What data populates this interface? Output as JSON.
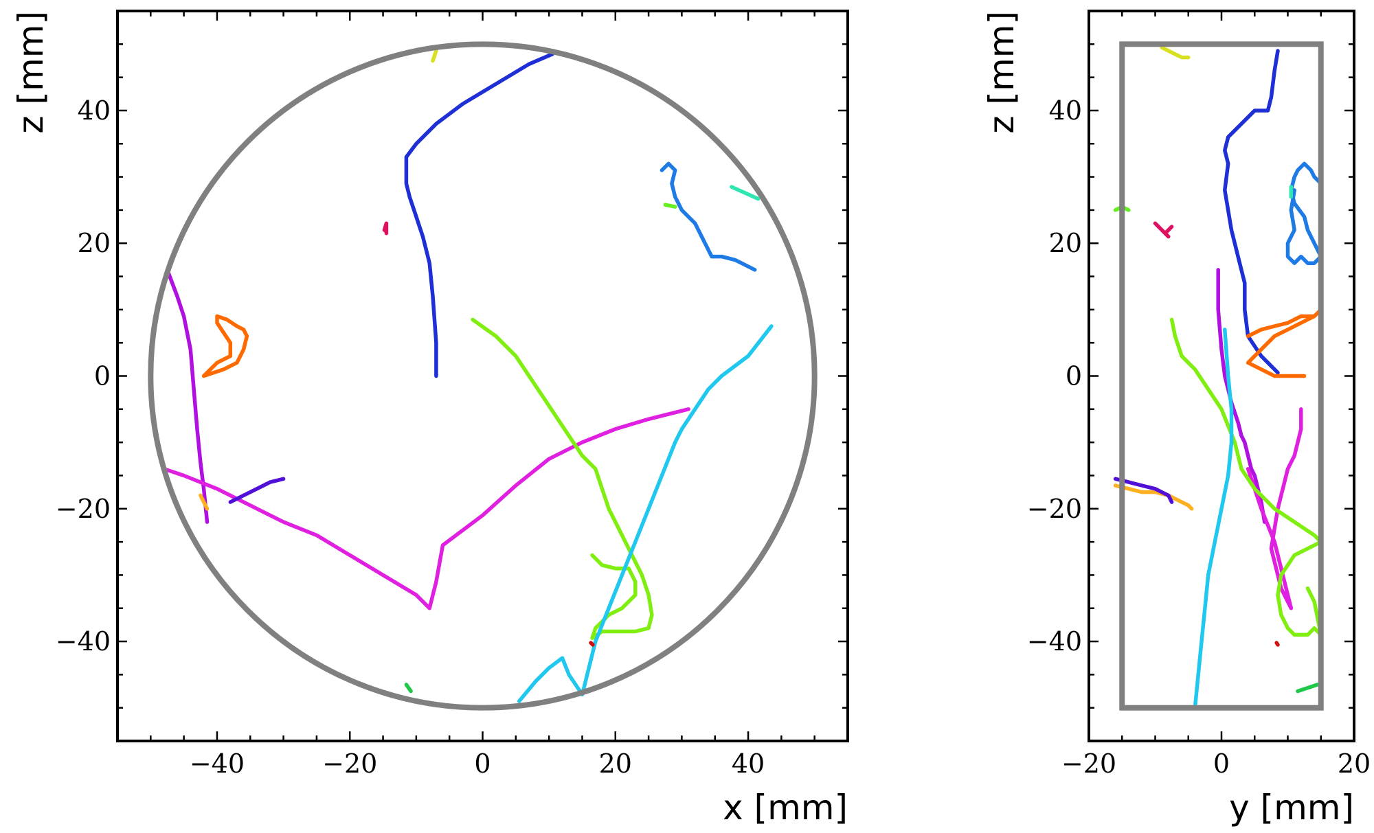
{
  "chart_data": [
    {
      "type": "line",
      "xlabel": "x [mm]",
      "ylabel": "z [mm]",
      "xlim": [
        -55,
        55
      ],
      "ylim": [
        -55,
        55
      ],
      "xticks": [
        -40,
        -20,
        0,
        20,
        40
      ],
      "yticks": [
        -40,
        -20,
        0,
        20,
        40
      ],
      "xtick_labels": [
        "−40",
        "−20",
        "0",
        "20",
        "40"
      ],
      "ytick_labels": [
        "−40",
        "−20",
        "0",
        "20",
        "40"
      ],
      "minor_step": 5,
      "grid": false,
      "legend": "none",
      "detector": {
        "shape": "circle",
        "cx": 0,
        "cy": 0,
        "r": 50,
        "color": "#808080"
      },
      "series": [
        {
          "color": "#1e2fd6",
          "x": [
            -7,
            -7,
            -7.5,
            -8,
            -8.5,
            -9,
            -10,
            -11,
            -11.5,
            -11.5,
            -11.5,
            -10,
            -7,
            -3,
            2,
            7,
            10.5
          ],
          "y": [
            0,
            5,
            12,
            17,
            19,
            21,
            24,
            27,
            29,
            32,
            33,
            35,
            38,
            41,
            44,
            47,
            48.5
          ]
        },
        {
          "color": "#1e7be6",
          "x": [
            27,
            28,
            29,
            28.5,
            29,
            30,
            32,
            33,
            34,
            34.5,
            36,
            38,
            39,
            41
          ],
          "y": [
            31,
            32,
            31,
            29,
            27,
            25,
            23,
            21,
            19,
            18,
            18,
            17.5,
            17,
            16
          ]
        },
        {
          "color": "#2fe6b0",
          "x": [
            37.5,
            41.5
          ],
          "y": [
            28.5,
            26.7
          ]
        },
        {
          "color": "#66ee22",
          "x": [
            27.5,
            29
          ],
          "y": [
            25.8,
            25.5
          ]
        },
        {
          "color": "#e01060",
          "x": [
            -14.5,
            -14.5,
            -14.5,
            -14.8,
            -14.5
          ],
          "y": [
            21.5,
            22.5,
            23,
            22,
            21.8
          ]
        },
        {
          "color": "#ff6a00",
          "x": [
            -42,
            -42,
            -39,
            -37,
            -36,
            -35.5,
            -36,
            -37,
            -38.5,
            -40,
            -40,
            -39,
            -38,
            -38,
            -40,
            -42
          ],
          "y": [
            0,
            0,
            1,
            2,
            4,
            6,
            7,
            7.5,
            8.5,
            9,
            8,
            6.5,
            5,
            3,
            2,
            0
          ]
        },
        {
          "color": "#b010e0",
          "x": [
            -47.5,
            -46,
            -45,
            -44,
            -43.5,
            -43,
            -42.5,
            -42,
            -41.5
          ],
          "y": [
            16,
            12,
            9,
            4,
            -2,
            -8,
            -13,
            -17,
            -22
          ]
        },
        {
          "color": "#ffb020",
          "x": [
            -42.5,
            -41.5
          ],
          "y": [
            -18,
            -20
          ]
        },
        {
          "color": "#e020e0",
          "x": [
            -48,
            -45,
            -40,
            -35,
            -30,
            -25,
            -20,
            -15,
            -10,
            -8,
            -7,
            -6,
            0,
            5,
            10,
            15,
            20,
            25,
            31
          ],
          "y": [
            -14,
            -15,
            -17,
            -19.5,
            -22,
            -24,
            -27,
            -30,
            -33,
            -35,
            -31,
            -25.5,
            -21,
            -16.5,
            -12.5,
            -10,
            -8,
            -6.5,
            -5
          ]
        },
        {
          "color": "#5010d8",
          "x": [
            -38,
            -35,
            -32,
            -30
          ],
          "y": [
            -19,
            -17.5,
            -16,
            -15.5
          ]
        },
        {
          "color": "#80ee10",
          "x": [
            -1.5,
            2,
            5,
            7,
            9,
            11,
            13,
            15,
            17,
            18,
            19,
            20,
            21,
            22,
            23,
            24,
            25,
            25.5,
            25,
            23,
            20,
            18,
            16.5,
            17,
            19,
            21,
            22,
            23,
            23,
            22,
            20,
            18,
            16.5
          ],
          "y": [
            8.5,
            6,
            3,
            0,
            -3,
            -6,
            -9,
            -12,
            -14,
            -17,
            -20,
            -22,
            -24,
            -26,
            -28,
            -30,
            -33,
            -36,
            -38,
            -38.5,
            -38.5,
            -38.5,
            -39.5,
            -38,
            -36,
            -35,
            -34,
            -33,
            -31,
            -29,
            -29,
            -28.5,
            -27
          ]
        },
        {
          "color": "#20c8f0",
          "x": [
            5.5,
            8,
            10,
            12,
            13,
            14,
            15,
            17,
            19,
            21,
            23,
            25,
            27,
            29,
            30,
            32,
            34,
            36,
            40,
            43.5
          ],
          "y": [
            -49,
            -46,
            -44,
            -42.5,
            -45,
            -46.5,
            -48,
            -40,
            -35,
            -30,
            -25,
            -20,
            -15,
            -10,
            -8,
            -5,
            -2,
            0,
            3,
            7.5
          ]
        },
        {
          "color": "#d8e020",
          "x": [
            -7.5,
            -7
          ],
          "y": [
            47.5,
            49
          ]
        },
        {
          "color": "#20c84a",
          "x": [
            -11.5,
            -10.8
          ],
          "y": [
            -46.5,
            -47.5
          ]
        },
        {
          "color": "#d01010",
          "x": [
            16.3,
            16.6
          ],
          "y": [
            -40.2,
            -40.5
          ]
        }
      ]
    },
    {
      "type": "line",
      "xlabel": "y [mm]",
      "ylabel": "z [mm]",
      "xlim": [
        -20,
        20
      ],
      "ylim": [
        -55,
        55
      ],
      "xticks": [
        -20,
        0,
        20
      ],
      "yticks": [
        -40,
        -20,
        0,
        20,
        40
      ],
      "xtick_labels": [
        "−20",
        "0",
        "20"
      ],
      "ytick_labels": [
        "−40",
        "−20",
        "0",
        "20",
        "40"
      ],
      "minor_step": 5,
      "grid": false,
      "legend": "none",
      "detector": {
        "shape": "rect",
        "x": [
          -15,
          15
        ],
        "y": [
          -50,
          50
        ],
        "color": "#808080"
      },
      "series": [
        {
          "color": "#1e2fd6",
          "x": [
            8.5,
            6,
            4,
            3.5,
            3.5,
            2.5,
            1.5,
            0.5,
            1,
            0.5,
            1,
            3,
            5,
            7,
            7.5,
            8,
            8.5
          ],
          "y": [
            0.5,
            3,
            6,
            10,
            14,
            18,
            22,
            28,
            32,
            34,
            36,
            38,
            40,
            40,
            42,
            46,
            49
          ]
        },
        {
          "color": "#1e7be6",
          "x": [
            11,
            10.5,
            11,
            10,
            10,
            11,
            12,
            13,
            14,
            15,
            14,
            13,
            12.5,
            11,
            10.5,
            11,
            11.5,
            12.5,
            13.5,
            14,
            15
          ],
          "y": [
            28,
            25,
            22,
            20,
            18,
            17,
            18,
            17,
            17,
            18,
            20,
            22,
            24,
            26,
            28,
            30,
            31,
            32,
            31,
            30,
            29
          ]
        },
        {
          "color": "#2fe6b0",
          "x": [
            10.5,
            10.5
          ],
          "y": [
            27,
            28.5
          ]
        },
        {
          "color": "#66ee22",
          "x": [
            -16,
            -15,
            -14
          ],
          "y": [
            25,
            25.5,
            25
          ]
        },
        {
          "color": "#e01060",
          "x": [
            -10,
            -9,
            -8,
            -8.5,
            -8,
            -7.5
          ],
          "y": [
            23,
            22,
            21,
            21.5,
            22,
            22.5
          ]
        },
        {
          "color": "#ff6a00",
          "x": [
            4,
            6,
            8,
            10,
            12,
            14,
            15,
            14,
            12,
            10,
            8,
            6,
            4,
            6,
            8,
            10,
            12,
            12.5
          ],
          "y": [
            6,
            7,
            7.5,
            8,
            9,
            9,
            10,
            9,
            8,
            7,
            6,
            4,
            2,
            1,
            0,
            0,
            0,
            0
          ]
        },
        {
          "color": "#b010e0",
          "x": [
            -0.5,
            -0.5,
            0,
            0.5,
            1.5,
            2.5,
            3,
            3.5,
            4,
            4.5,
            5,
            5.5,
            6,
            6.5
          ],
          "y": [
            16,
            10,
            4,
            0,
            -4,
            -7,
            -9,
            -10,
            -12,
            -14,
            -15,
            -17,
            -19,
            -22
          ]
        },
        {
          "color": "#ffb020",
          "x": [
            -16,
            -14,
            -12,
            -10,
            -8,
            -6,
            -5,
            -4.5
          ],
          "y": [
            -16.5,
            -17,
            -17.5,
            -17.5,
            -18,
            -19,
            -19.5,
            -20
          ]
        },
        {
          "color": "#e020e0",
          "x": [
            12,
            12,
            11.5,
            11,
            10,
            9.5,
            9,
            8.5,
            8,
            7.5,
            8,
            8.5,
            9,
            10,
            10.5,
            10,
            8,
            6,
            5,
            4
          ],
          "y": [
            -5,
            -8,
            -10,
            -12,
            -14,
            -16,
            -18,
            -20,
            -23,
            -26,
            -28,
            -30,
            -32,
            -34,
            -35,
            -33,
            -25,
            -20,
            -17,
            -14
          ]
        },
        {
          "color": "#5010d8",
          "x": [
            -16,
            -14,
            -12,
            -10,
            -8,
            -7.5
          ],
          "y": [
            -15.5,
            -16,
            -16.5,
            -17,
            -18,
            -19
          ]
        },
        {
          "color": "#80ee10",
          "x": [
            -7.5,
            -7,
            -6,
            -4,
            -2,
            0,
            2,
            3,
            5,
            8,
            11,
            14,
            15,
            13,
            11,
            9,
            8.5,
            9,
            10,
            11,
            13,
            14,
            15,
            14,
            13
          ],
          "y": [
            8.5,
            6,
            3,
            1,
            -2,
            -5,
            -10,
            -14,
            -17,
            -20,
            -22,
            -24,
            -25,
            -26,
            -27,
            -30,
            -33,
            -36,
            -38,
            -39,
            -39,
            -38,
            -39,
            -34,
            -32
          ]
        },
        {
          "color": "#20c8f0",
          "x": [
            -4,
            -3.5,
            -3,
            -2.5,
            -2,
            -1,
            0,
            1,
            1.5,
            1.5,
            1,
            0.5
          ],
          "y": [
            -50,
            -45,
            -40,
            -35,
            -30,
            -25,
            -20,
            -15,
            -10,
            -5,
            0,
            7
          ]
        },
        {
          "color": "#d8e020",
          "x": [
            -9,
            -8,
            -6,
            -5
          ],
          "y": [
            49.5,
            49,
            48,
            48
          ]
        },
        {
          "color": "#20c84a",
          "x": [
            11.5,
            13,
            14.5
          ],
          "y": [
            -47.5,
            -47,
            -46.5
          ]
        },
        {
          "color": "#d01010",
          "x": [
            8.3,
            8.5
          ],
          "y": [
            -40.2,
            -40.5
          ]
        }
      ]
    }
  ]
}
